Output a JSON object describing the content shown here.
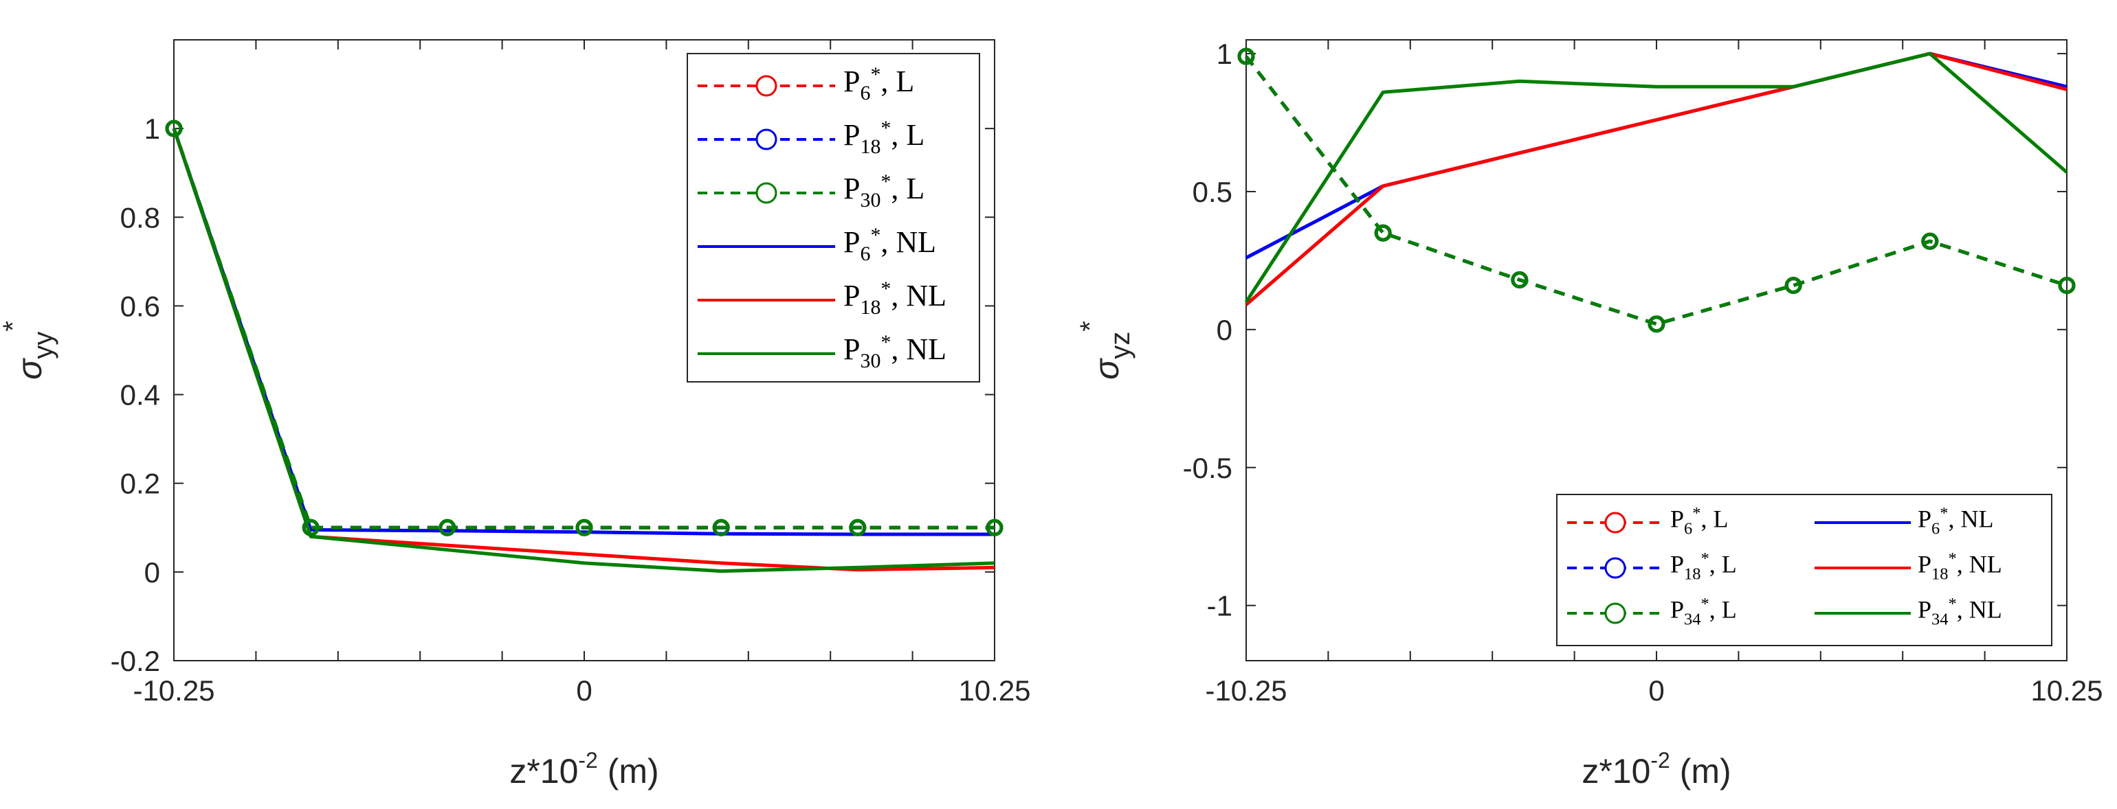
{
  "chart_data": [
    {
      "type": "line",
      "title": "",
      "xlabel": "z*10^-2 (m)",
      "ylabel": "σ_yy*",
      "xlabel_parts": {
        "base": "z*10",
        "exp": "-2",
        "rest": " (m)"
      },
      "ylabel_parts": {
        "base": "σ",
        "sub": "yy",
        "sup": "*"
      },
      "xlim": [
        -10.25,
        10.25
      ],
      "ylim": [
        -0.2,
        1.2
      ],
      "xticks": [
        -10.25,
        -8.2,
        -6.15,
        -4.1,
        -2.05,
        0,
        2.05,
        4.1,
        6.15,
        8.2,
        10.25
      ],
      "xtick_labels": [
        "-10.25",
        "",
        "",
        "",
        "",
        "0",
        "",
        "",
        "",
        "",
        "10.25"
      ],
      "yticks": [
        -0.2,
        0,
        0.2,
        0.4,
        0.6,
        0.8,
        1
      ],
      "ytick_labels": [
        "-0.2",
        "0",
        "0.2",
        "0.4",
        "0.6",
        "0.8",
        "1"
      ],
      "x": [
        -10.25,
        -6.83,
        -3.42,
        0,
        3.42,
        6.83,
        10.25
      ],
      "legend_position": "top-right",
      "series": [
        {
          "name": "P6*, L",
          "label_base": "P",
          "label_sub": "6",
          "label_rest": ", L",
          "color": "#ff0000",
          "style": "dashed",
          "marker": "circle",
          "values": [
            1.0,
            0.1,
            0.1,
            0.1,
            0.1,
            0.1,
            0.1
          ]
        },
        {
          "name": "P18*, L",
          "label_base": "P",
          "label_sub": "18",
          "label_rest": ", L",
          "color": "#0000ff",
          "style": "dashed",
          "marker": "circle",
          "values": [
            1.0,
            0.1,
            0.1,
            0.1,
            0.1,
            0.1,
            0.1
          ]
        },
        {
          "name": "P30*, L",
          "label_base": "P",
          "label_sub": "30",
          "label_rest": ", L",
          "color": "#008000",
          "style": "dashed",
          "marker": "circle",
          "values": [
            1.0,
            0.1,
            0.1,
            0.1,
            0.1,
            0.1,
            0.1
          ]
        },
        {
          "name": "P6*, NL",
          "label_base": "P",
          "label_sub": "6",
          "label_rest": ", NL",
          "color": "#0000ff",
          "style": "solid",
          "marker": "none",
          "values": [
            1.0,
            0.095,
            0.093,
            0.09,
            0.086,
            0.085,
            0.085
          ]
        },
        {
          "name": "P18*, NL",
          "label_base": "P",
          "label_sub": "18",
          "label_rest": ", NL",
          "color": "#ff0000",
          "style": "solid",
          "marker": "none",
          "values": [
            1.0,
            0.08,
            0.06,
            0.04,
            0.02,
            0.005,
            0.01
          ]
        },
        {
          "name": "P30*, NL",
          "label_base": "P",
          "label_sub": "30",
          "label_rest": ", NL",
          "color": "#008000",
          "style": "solid",
          "marker": "none",
          "values": [
            1.0,
            0.08,
            0.05,
            0.02,
            0.002,
            0.01,
            0.02
          ]
        }
      ]
    },
    {
      "type": "line",
      "title": "",
      "xlabel": "z*10^-2 (m)",
      "ylabel": "σ_yz*",
      "xlabel_parts": {
        "base": "z*10",
        "exp": "-2",
        "rest": " (m)"
      },
      "ylabel_parts": {
        "base": "σ",
        "sub": "yz",
        "sup": "*"
      },
      "xlim": [
        -10.25,
        10.25
      ],
      "ylim": [
        -1.2,
        1.05
      ],
      "xticks": [
        -10.25,
        -8.2,
        -6.15,
        -4.1,
        -2.05,
        0,
        2.05,
        4.1,
        6.15,
        8.2,
        10.25
      ],
      "xtick_labels": [
        "-10.25",
        "",
        "",
        "",
        "",
        "0",
        "",
        "",
        "",
        "",
        "10.25"
      ],
      "yticks": [
        -1,
        -0.5,
        0,
        0.5,
        1
      ],
      "ytick_labels": [
        "-1",
        "-0.5",
        "0",
        "0.5",
        "1"
      ],
      "x": [
        -10.25,
        -6.83,
        -3.42,
        0,
        3.42,
        6.83,
        10.25
      ],
      "legend_position": "bottom-right",
      "series": [
        {
          "name": "P6*, L",
          "label_base": "P",
          "label_sub": "6",
          "label_rest": ", L",
          "color": "#ff0000",
          "style": "dashed",
          "marker": "circle",
          "values": [
            0.99,
            0.35,
            0.18,
            0.02,
            0.16,
            0.32,
            0.16
          ]
        },
        {
          "name": "P18*, L",
          "label_base": "P",
          "label_sub": "18",
          "label_rest": ", L",
          "color": "#0000ff",
          "style": "dashed",
          "marker": "circle",
          "values": [
            0.99,
            0.35,
            0.18,
            0.02,
            0.16,
            0.32,
            0.16
          ]
        },
        {
          "name": "P34*, L",
          "label_base": "P",
          "label_sub": "34",
          "label_rest": ", L",
          "color": "#008000",
          "style": "dashed",
          "marker": "circle",
          "values": [
            0.99,
            0.35,
            0.18,
            0.02,
            0.16,
            0.32,
            0.16
          ]
        },
        {
          "name": "P6*, NL",
          "label_base": "P",
          "label_sub": "6",
          "label_rest": ", NL",
          "color": "#0000ff",
          "style": "solid",
          "marker": "none",
          "values": [
            0.26,
            0.52,
            0.64,
            0.76,
            0.88,
            1.0,
            0.88
          ]
        },
        {
          "name": "P18*, NL",
          "label_base": "P",
          "label_sub": "18",
          "label_rest": ", NL",
          "color": "#ff0000",
          "style": "solid",
          "marker": "none",
          "values": [
            0.09,
            0.52,
            0.64,
            0.76,
            0.88,
            1.0,
            0.87
          ]
        },
        {
          "name": "P34*, NL",
          "label_base": "P",
          "label_sub": "34",
          "label_rest": ", NL",
          "color": "#008000",
          "style": "solid",
          "marker": "none",
          "values": [
            0.1,
            0.86,
            0.9,
            0.88,
            0.88,
            1.0,
            0.57
          ]
        }
      ]
    }
  ]
}
